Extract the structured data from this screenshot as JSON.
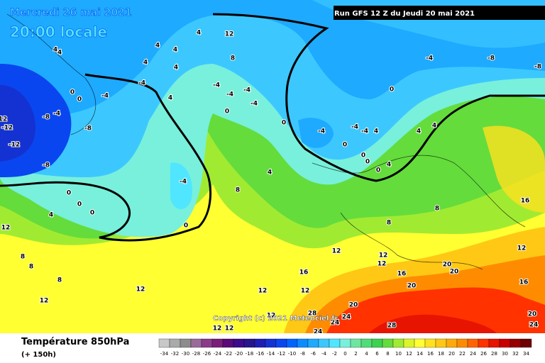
{
  "header": {
    "date": "Mercredi 26 mai 2021",
    "time": "20:00 locale",
    "run": "Run GFS 12 Z du Jeudi 20 mai 2021",
    "copyright": "Copyright (c) 2021 Meteociel.fr"
  },
  "footer": {
    "title": "Température 850hPa",
    "lead": "(+ 150h)"
  },
  "scale": {
    "ticks": [
      -34,
      -32,
      -30,
      -28,
      -26,
      -24,
      -22,
      -20,
      -18,
      -16,
      -14,
      -12,
      -10,
      -8,
      -6,
      -4,
      -2,
      0,
      2,
      4,
      6,
      8,
      10,
      12,
      14,
      16,
      18,
      20,
      22,
      24,
      26,
      28,
      30,
      32,
      34
    ],
    "colors": [
      "#c8c8c8",
      "#aaaaaa",
      "#8c8c8c",
      "#9a6a9a",
      "#8a3c8a",
      "#7a1e7a",
      "#5a0a78",
      "#3c0a8c",
      "#28148c",
      "#1e1eb4",
      "#1432d2",
      "#0a46f0",
      "#0064ff",
      "#0a8cff",
      "#1eaaff",
      "#3cc8ff",
      "#50e6ff",
      "#78f0dc",
      "#6ee6a0",
      "#50dc78",
      "#3cd250",
      "#64dc3c",
      "#a0eb32",
      "#dcf528",
      "#ffff32",
      "#ffe11e",
      "#ffc814",
      "#ffaa0a",
      "#ff8c00",
      "#ff6400",
      "#ff3200",
      "#e61400",
      "#c80000",
      "#960000",
      "#6e0000"
    ]
  },
  "contour_labels": [
    12,
    -12,
    -12,
    -8,
    -4,
    -8,
    -4,
    -4,
    4,
    4,
    4,
    4,
    4,
    12,
    8,
    4,
    4,
    4,
    -4,
    -4,
    -4,
    -4,
    0,
    0,
    0,
    -4,
    0,
    0,
    -4,
    -4,
    4,
    0,
    0,
    0,
    0,
    4,
    4,
    -4,
    0,
    0,
    0,
    0,
    4,
    8,
    8,
    8,
    12,
    12,
    12,
    16,
    16,
    20,
    20,
    20,
    16,
    12,
    16,
    -4,
    -8,
    -8,
    4,
    4,
    12,
    8,
    8,
    8,
    12,
    12,
    12,
    12,
    12,
    20,
    24,
    24,
    28,
    28,
    24,
    20,
    24,
    12,
    12,
    -8
  ]
}
